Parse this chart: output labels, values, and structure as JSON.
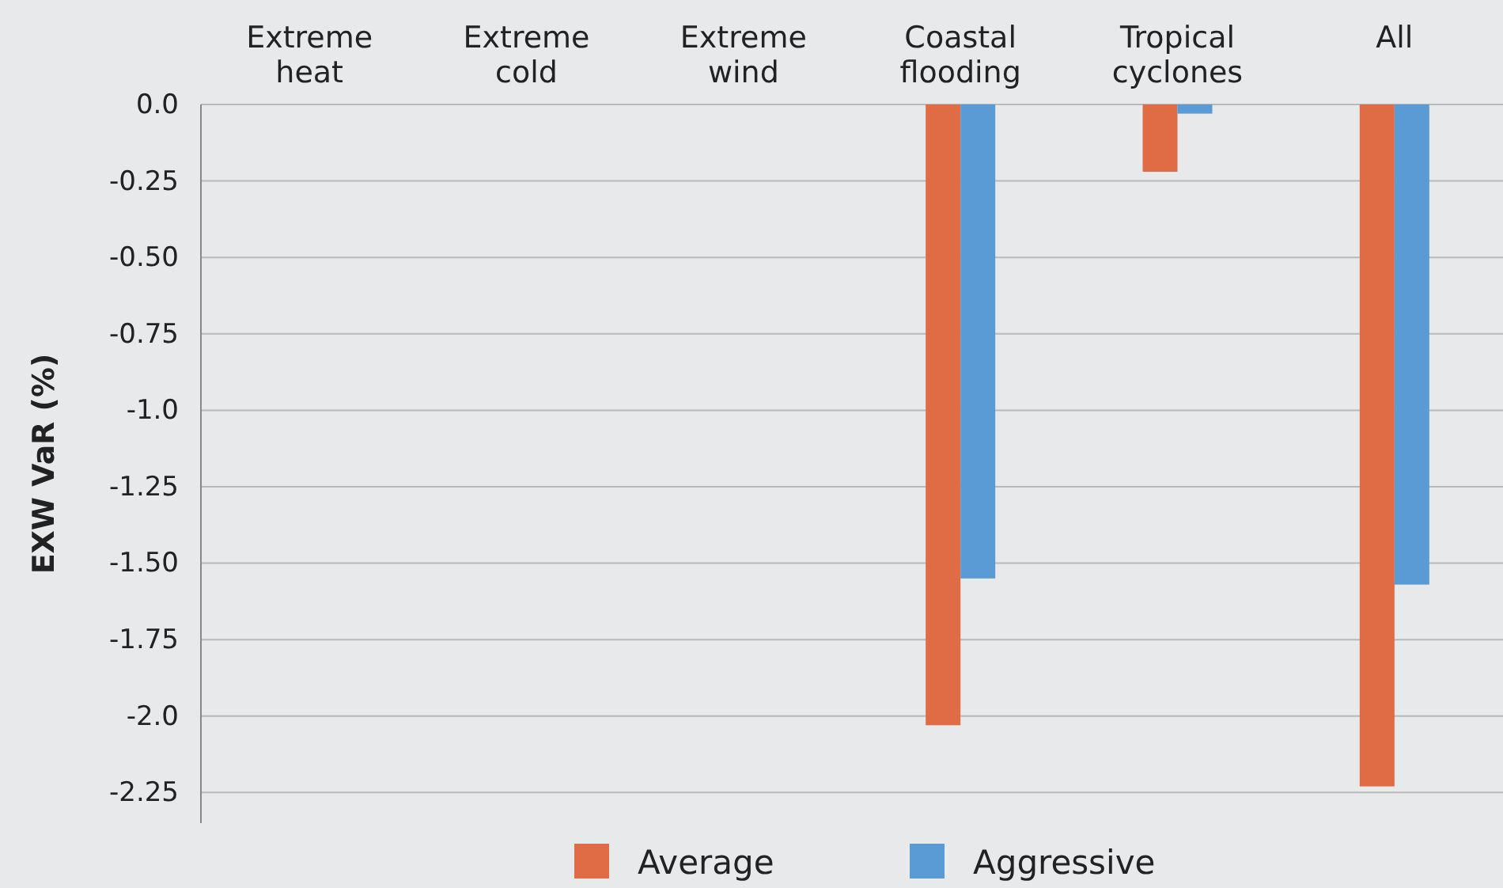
{
  "chart_data": {
    "type": "bar",
    "ylabel": "EXW VaR (%)",
    "categories": [
      "Extreme heat",
      "Extreme cold",
      "Extreme wind",
      "Coastal flooding",
      "Tropical cyclones",
      "All"
    ],
    "series": [
      {
        "name": "Average",
        "color": "#e06c45",
        "values": [
          null,
          null,
          null,
          -2.03,
          -0.22,
          -2.23
        ]
      },
      {
        "name": "Aggressive",
        "color": "#5b9bd5",
        "values": [
          null,
          null,
          null,
          -1.55,
          -0.03,
          -1.57
        ]
      }
    ],
    "ylim": [
      -2.35,
      0
    ],
    "yticks": [
      {
        "value": 0,
        "label": "0.0"
      },
      {
        "value": -0.25,
        "label": "-0.25"
      },
      {
        "value": -0.5,
        "label": "-0.50"
      },
      {
        "value": -0.75,
        "label": "-0.75"
      },
      {
        "value": -1,
        "label": "-1.0"
      },
      {
        "value": -1.25,
        "label": "-1.25"
      },
      {
        "value": -1.5,
        "label": "-1.50"
      },
      {
        "value": -1.75,
        "label": "-1.75"
      },
      {
        "value": -2,
        "label": "-2.0"
      },
      {
        "value": -2.25,
        "label": "-2.25"
      }
    ],
    "grid": "y",
    "legend": "bottom"
  }
}
